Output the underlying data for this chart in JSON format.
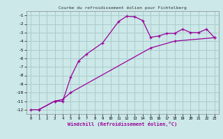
{
  "title": "Courbe du refroidissement éolien pour Fichtelberg",
  "xlabel": "Windchill (Refroidissement éolien,°C)",
  "background_color": "#cce8e8",
  "grid_color": "#aacccc",
  "line_color": "#990099",
  "xlim": [
    -0.5,
    23.5
  ],
  "ylim": [
    -12.5,
    -0.5
  ],
  "xticks": [
    0,
    1,
    2,
    3,
    4,
    5,
    6,
    7,
    8,
    9,
    10,
    11,
    12,
    13,
    14,
    15,
    16,
    17,
    18,
    19,
    20,
    21,
    22,
    23
  ],
  "yticks": [
    -12,
    -11,
    -10,
    -9,
    -8,
    -7,
    -6,
    -5,
    -4,
    -3,
    -2,
    -1
  ],
  "curve1_x": [
    0,
    1,
    3,
    4,
    5,
    6,
    7,
    9,
    11,
    12,
    13,
    14,
    15,
    16,
    17,
    18,
    19,
    20,
    21,
    22,
    23
  ],
  "curve1_y": [
    -12,
    -12,
    -11,
    -11,
    -8.2,
    -6.3,
    -5.5,
    -4.2,
    -1.7,
    -1.1,
    -1.15,
    -1.6,
    -3.55,
    -3.4,
    -3.1,
    -3.1,
    -2.6,
    -3.0,
    -3.0,
    -2.6,
    -3.6
  ],
  "curve2_x": [
    1,
    3,
    4,
    5,
    15,
    18,
    23
  ],
  "curve2_y": [
    -12,
    -11,
    -10.8,
    -10.0,
    -4.8,
    -4.0,
    -3.6
  ],
  "marker": "+"
}
